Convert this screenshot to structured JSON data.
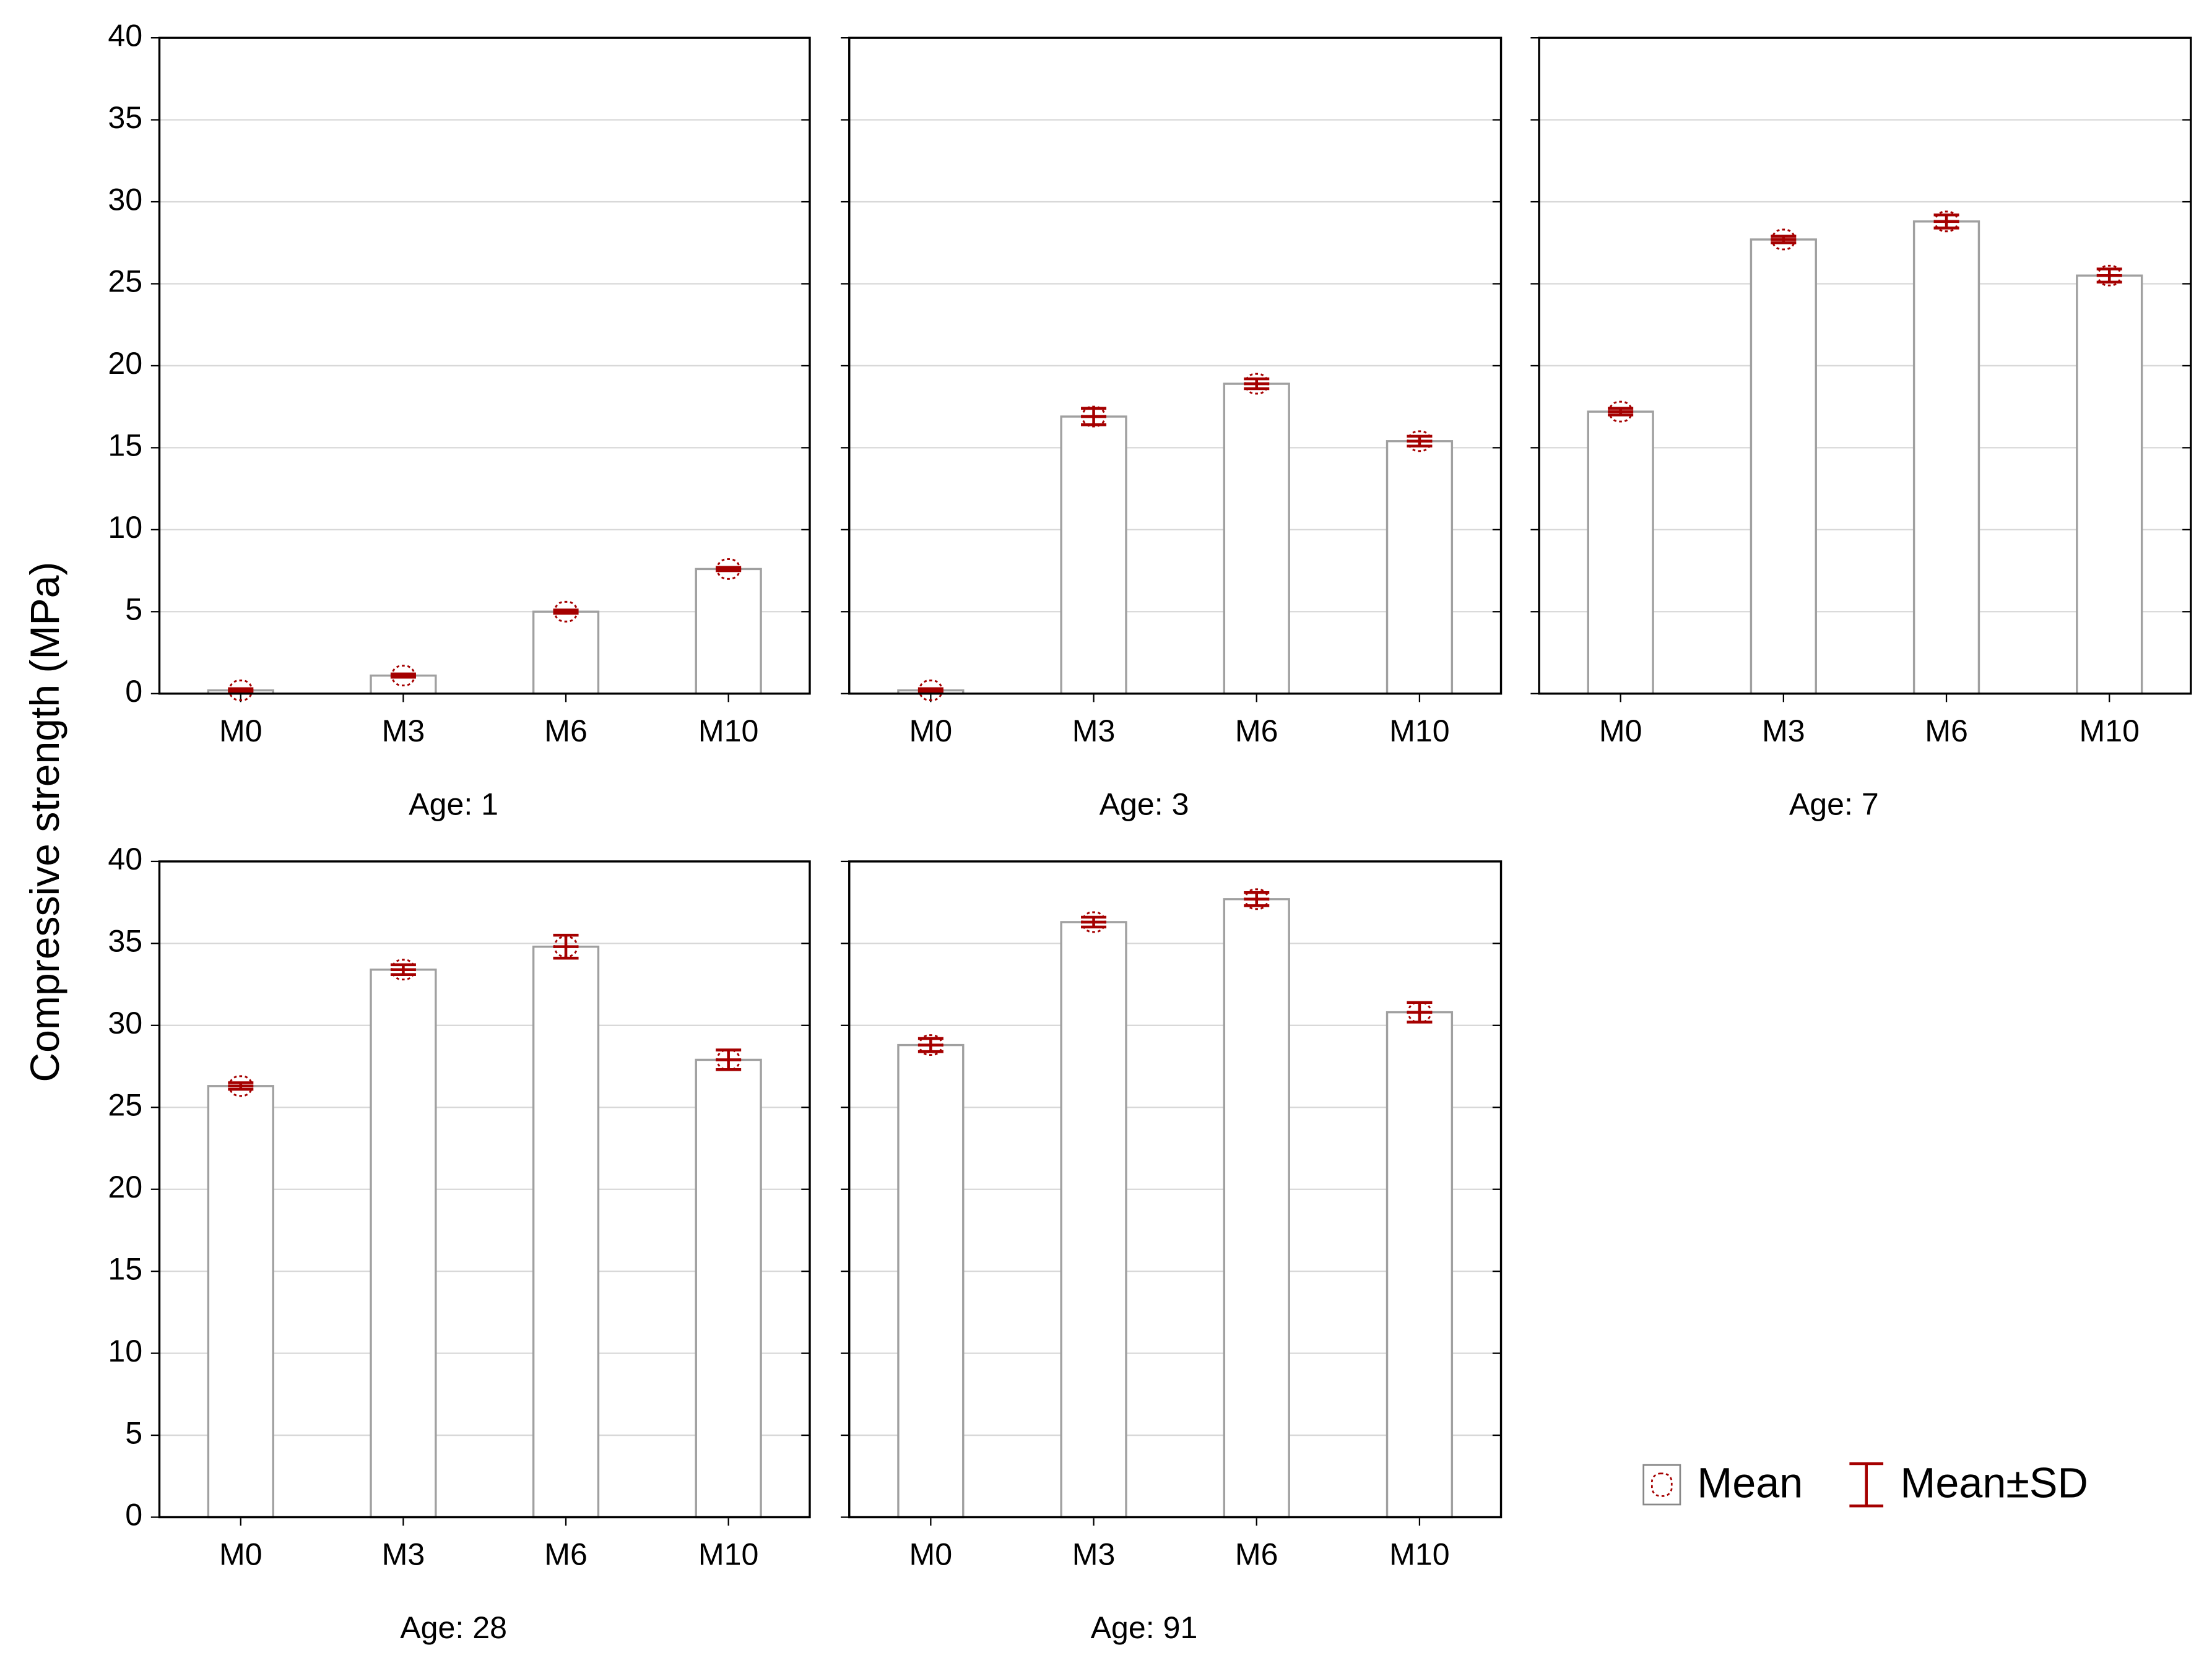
{
  "ylabel": "Compressive strength (MPa)",
  "legend": {
    "items": [
      "Mean",
      "Mean±SD"
    ],
    "position": "lower right"
  },
  "chart_data": [
    {
      "type": "bar",
      "xlabel": "Age: 1",
      "categories": [
        "M0",
        "M3",
        "M6",
        "M10"
      ],
      "values": [
        0.2,
        1.1,
        5.0,
        7.6
      ],
      "errors": [
        0.1,
        0.1,
        0.1,
        0.1
      ],
      "color": "#ffffff",
      "edgecolor": "#a0a0a0",
      "error_color": "#a50000",
      "ylim": [
        0,
        40
      ],
      "yticks": [
        0,
        5,
        10,
        15,
        20,
        25,
        30,
        35,
        40
      ],
      "grid": true
    },
    {
      "type": "bar",
      "xlabel": "Age: 3",
      "categories": [
        "M0",
        "M3",
        "M6",
        "M10"
      ],
      "values": [
        0.2,
        16.9,
        18.9,
        15.4
      ],
      "errors": [
        0.1,
        0.5,
        0.3,
        0.3
      ],
      "color": "#ffffff",
      "edgecolor": "#a0a0a0",
      "error_color": "#a50000",
      "ylim": [
        0,
        40
      ],
      "yticks": [
        0,
        5,
        10,
        15,
        20,
        25,
        30,
        35,
        40
      ],
      "grid": true
    },
    {
      "type": "bar",
      "xlabel": "Age: 7",
      "categories": [
        "M0",
        "M3",
        "M6",
        "M10"
      ],
      "values": [
        17.2,
        27.7,
        28.8,
        25.5
      ],
      "errors": [
        0.2,
        0.2,
        0.4,
        0.4
      ],
      "color": "#ffffff",
      "edgecolor": "#a0a0a0",
      "error_color": "#a50000",
      "ylim": [
        0,
        40
      ],
      "yticks": [
        0,
        5,
        10,
        15,
        20,
        25,
        30,
        35,
        40
      ],
      "grid": true
    },
    {
      "type": "bar",
      "xlabel": "Age: 28",
      "categories": [
        "M0",
        "M3",
        "M6",
        "M10"
      ],
      "values": [
        26.3,
        33.4,
        34.8,
        27.9
      ],
      "errors": [
        0.2,
        0.3,
        0.7,
        0.6
      ],
      "color": "#ffffff",
      "edgecolor": "#a0a0a0",
      "error_color": "#a50000",
      "ylim": [
        0,
        40
      ],
      "yticks": [
        0,
        5,
        10,
        15,
        20,
        25,
        30,
        35,
        40
      ],
      "grid": true
    },
    {
      "type": "bar",
      "xlabel": "Age: 91",
      "categories": [
        "M0",
        "M3",
        "M6",
        "M10"
      ],
      "values": [
        28.8,
        36.3,
        37.7,
        30.8
      ],
      "errors": [
        0.4,
        0.3,
        0.4,
        0.6
      ],
      "color": "#ffffff",
      "edgecolor": "#a0a0a0",
      "error_color": "#a50000",
      "ylim": [
        0,
        40
      ],
      "yticks": [
        0,
        5,
        10,
        15,
        20,
        25,
        30,
        35,
        40
      ],
      "grid": true
    }
  ]
}
